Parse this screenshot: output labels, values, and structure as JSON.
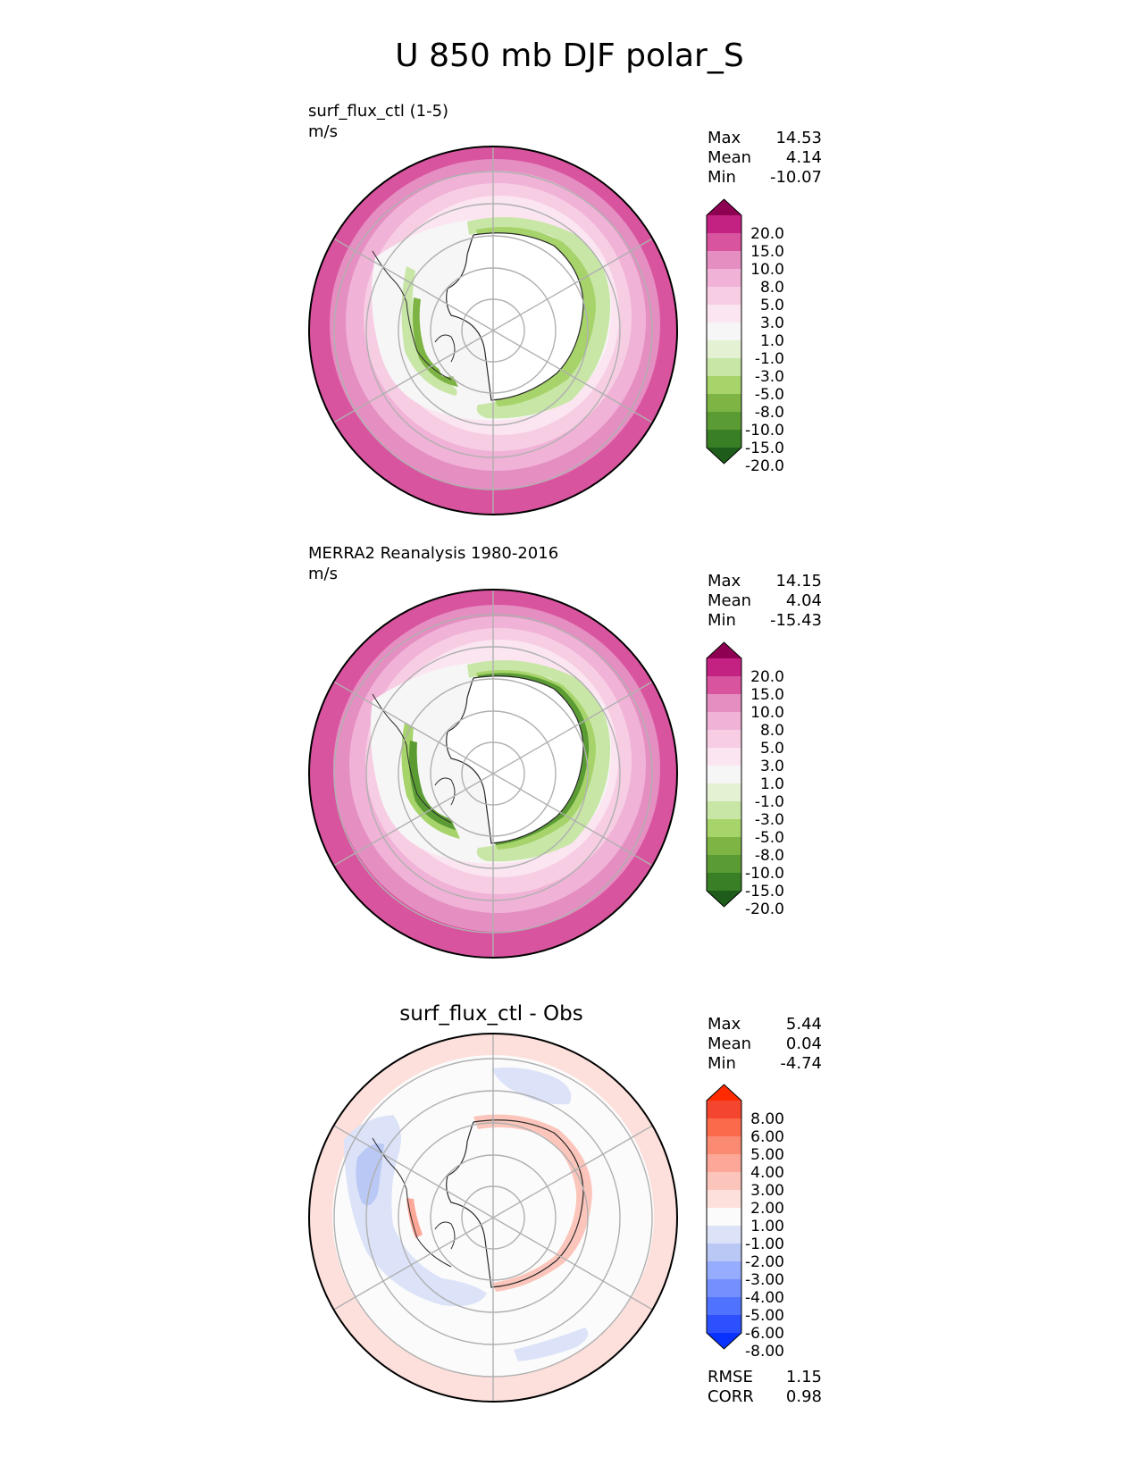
{
  "title": "U 850 mb DJF polar_S",
  "panels": [
    {
      "name_line": "surf_flux_ctl (1-5)",
      "units": "m/s",
      "stats": {
        "max_label": "Max",
        "max": "14.53",
        "mean_label": "Mean",
        "mean": "4.14",
        "min_label": "Min",
        "min": "-10.07"
      },
      "colorbar": {
        "colors": [
          "#1e5c1b",
          "#397f25",
          "#5a9c33",
          "#7db443",
          "#a6d36a",
          "#c8e6a6",
          "#e4f1d2",
          "#f6f6f6",
          "#fbe5f1",
          "#f7cde4",
          "#f0b2d6",
          "#e58ec2",
          "#d9549f",
          "#c42283",
          "#8e0152"
        ],
        "labels": [
          "20.0",
          "15.0",
          "10.0",
          "8.0",
          "5.0",
          "3.0",
          "1.0",
          "-1.0",
          "-3.0",
          "-5.0",
          "-8.0",
          "-10.0",
          "-15.0",
          "-20.0"
        ]
      }
    },
    {
      "name_line": "MERRA2 Reanalysis 1980-2016",
      "units": "m/s",
      "stats": {
        "max_label": "Max",
        "max": "14.15",
        "mean_label": "Mean",
        "mean": "4.04",
        "min_label": "Min",
        "min": "-15.43"
      },
      "colorbar": {
        "colors": [
          "#1e5c1b",
          "#397f25",
          "#5a9c33",
          "#7db443",
          "#a6d36a",
          "#c8e6a6",
          "#e4f1d2",
          "#f6f6f6",
          "#fbe5f1",
          "#f7cde4",
          "#f0b2d6",
          "#e58ec2",
          "#d9549f",
          "#c42283",
          "#8e0152"
        ],
        "labels": [
          "20.0",
          "15.0",
          "10.0",
          "8.0",
          "5.0",
          "3.0",
          "1.0",
          "-1.0",
          "-3.0",
          "-5.0",
          "-8.0",
          "-10.0",
          "-15.0",
          "-20.0"
        ]
      }
    },
    {
      "title": "surf_flux_ctl - Obs",
      "stats": {
        "max_label": "Max",
        "max": "5.44",
        "mean_label": "Mean",
        "mean": "0.04",
        "min_label": "Min",
        "min": "-4.74"
      },
      "metrics": {
        "rmse_label": "RMSE",
        "rmse": "1.15",
        "corr_label": "CORR",
        "corr": "0.98"
      },
      "colorbar": {
        "colors": [
          "#0a32ff",
          "#2d50ff",
          "#5073ff",
          "#7490ff",
          "#96acff",
          "#b9c8f5",
          "#dce3f8",
          "#fbfbfb",
          "#fde0dc",
          "#fcc5bb",
          "#fca797",
          "#fb8a72",
          "#fb6a4a",
          "#f4452e",
          "#ff2a00"
        ],
        "labels": [
          "8.00",
          "6.00",
          "5.00",
          "4.00",
          "3.00",
          "2.00",
          "1.00",
          "-1.00",
          "-2.00",
          "-3.00",
          "-4.00",
          "-5.00",
          "-6.00",
          "-8.00"
        ]
      }
    }
  ],
  "chart_data": [
    {
      "type": "heatmap",
      "projection": "south polar stereographic",
      "title": "surf_flux_ctl (1-5)",
      "units": "m/s",
      "max": 14.53,
      "mean": 4.14,
      "min": -10.07,
      "levels": [
        -20,
        -15,
        -10,
        -8,
        -5,
        -3,
        -1,
        1,
        3,
        5,
        8,
        10,
        15,
        20
      ]
    },
    {
      "type": "heatmap",
      "projection": "south polar stereographic",
      "title": "MERRA2 Reanalysis 1980-2016",
      "units": "m/s",
      "max": 14.15,
      "mean": 4.04,
      "min": -15.43,
      "levels": [
        -20,
        -15,
        -10,
        -8,
        -5,
        -3,
        -1,
        1,
        3,
        5,
        8,
        10,
        15,
        20
      ]
    },
    {
      "type": "heatmap",
      "projection": "south polar stereographic",
      "title": "surf_flux_ctl - Obs",
      "max": 5.44,
      "mean": 0.04,
      "min": -4.74,
      "rmse": 1.15,
      "corr": 0.98,
      "levels": [
        -8,
        -6,
        -5,
        -4,
        -3,
        -2,
        -1,
        1,
        2,
        3,
        4,
        5,
        6,
        8
      ]
    }
  ]
}
